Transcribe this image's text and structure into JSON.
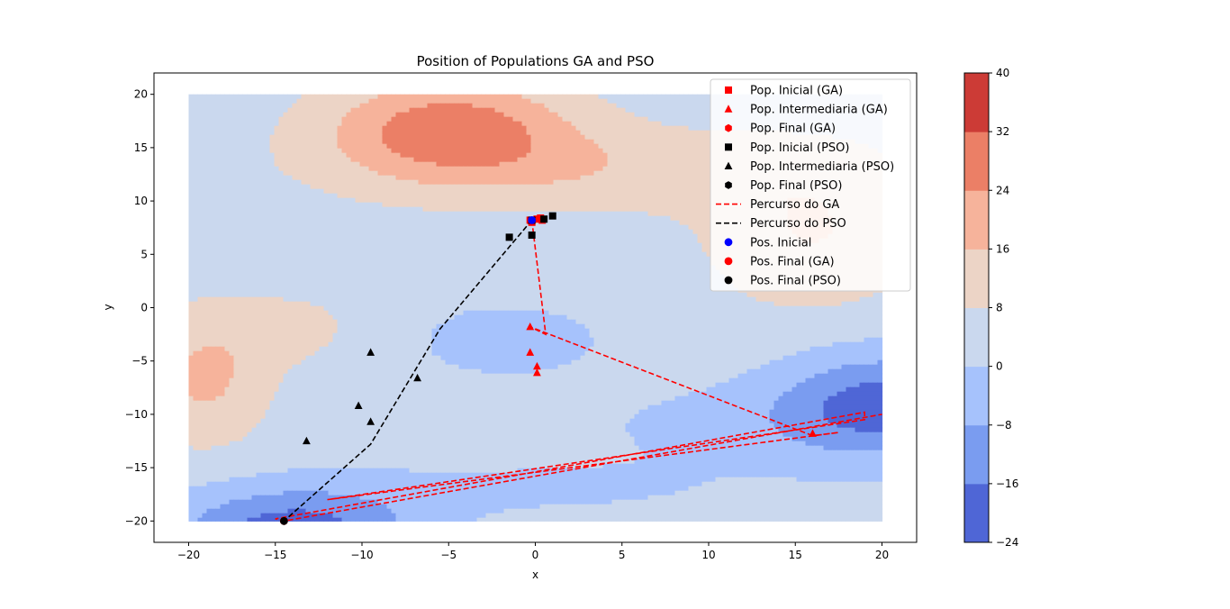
{
  "chart_data": {
    "type": "scatter",
    "title": "Position of Populations GA and PSO",
    "xlabel": "x",
    "ylabel": "y",
    "xlim": [
      -22,
      22
    ],
    "ylim": [
      -22,
      22
    ],
    "x_ticks": [
      -20,
      -15,
      -10,
      -5,
      0,
      5,
      10,
      15,
      20
    ],
    "y_ticks": [
      -20,
      -15,
      -10,
      -5,
      0,
      5,
      10,
      15,
      20
    ],
    "grid": false,
    "legend_position": "top-right",
    "colorbar": {
      "levels": [
        -24,
        -16,
        -8,
        0,
        8,
        16,
        24,
        32,
        40
      ],
      "colors": [
        "#4f66d6",
        "#7a9cf0",
        "#a6c2fc",
        "#cad8ee",
        "#ecd4c6",
        "#f6b39b",
        "#eb7f66",
        "#cc3b36"
      ]
    },
    "contour_background": "filled contour of the objective function over x in [-20, 20], y in [-20, 20]",
    "series": [
      {
        "name": "Pop. Inicial (GA)",
        "marker": "square",
        "color": "#ff0000",
        "kind": "points",
        "points": [
          [
            -0.3,
            8.2
          ],
          [
            0.1,
            8.3
          ],
          [
            0.4,
            8.2
          ],
          [
            -0.2,
            8.0
          ],
          [
            0.3,
            8.4
          ]
        ]
      },
      {
        "name": "Pop. Intermediaria (GA)",
        "marker": "triangle",
        "color": "#ff0000",
        "kind": "points",
        "points": [
          [
            -0.3,
            -1.8
          ],
          [
            -0.3,
            -4.2
          ],
          [
            0.1,
            -5.5
          ],
          [
            0.1,
            -6.1
          ],
          [
            16.0,
            -11.8
          ]
        ]
      },
      {
        "name": "Pop. Final (GA)",
        "marker": "hexagon",
        "color": "#ff0000",
        "kind": "points",
        "points": [
          [
            -14.5,
            -20.0
          ]
        ]
      },
      {
        "name": "Pop. Inicial (PSO)",
        "marker": "square",
        "color": "#000000",
        "kind": "points",
        "points": [
          [
            -1.5,
            6.6
          ],
          [
            -0.2,
            6.8
          ],
          [
            0.5,
            8.3
          ],
          [
            1.0,
            8.6
          ],
          [
            -0.2,
            8.2
          ]
        ]
      },
      {
        "name": "Pop. Intermediaria (PSO)",
        "marker": "triangle",
        "color": "#000000",
        "kind": "points",
        "points": [
          [
            -9.5,
            -4.2
          ],
          [
            -6.8,
            -6.6
          ],
          [
            -10.2,
            -9.2
          ],
          [
            -9.5,
            -10.7
          ],
          [
            -13.2,
            -12.5
          ]
        ]
      },
      {
        "name": "Pop. Final (PSO)",
        "marker": "hexagon",
        "color": "#000000",
        "kind": "points",
        "points": [
          [
            -14.5,
            -20.0
          ]
        ]
      },
      {
        "name": "Percurso do GA",
        "marker": "dashed-line",
        "color": "#ff0000",
        "kind": "path",
        "points": [
          [
            -0.2,
            8.2
          ],
          [
            0.6,
            -2.5
          ],
          [
            -0.3,
            -1.8
          ],
          [
            16.0,
            -12.0
          ],
          [
            17.5,
            -11.7
          ],
          [
            -12.0,
            -18.0
          ],
          [
            19.0,
            -10.5
          ],
          [
            19.0,
            -9.8
          ],
          [
            -15.0,
            -19.8
          ],
          [
            -14.5,
            -20.0
          ],
          [
            20.0,
            -10.0
          ]
        ]
      },
      {
        "name": "Percurso do PSO",
        "marker": "dashed-line",
        "color": "#000000",
        "kind": "path",
        "points": [
          [
            -0.2,
            8.2
          ],
          [
            -5.5,
            -2.0
          ],
          [
            -9.5,
            -12.8
          ],
          [
            -14.5,
            -20.0
          ]
        ]
      },
      {
        "name": "Pos. Inicial",
        "marker": "circle",
        "color": "#0000ff",
        "kind": "points",
        "points": [
          [
            -0.2,
            8.2
          ]
        ]
      },
      {
        "name": "Pos. Final (GA)",
        "marker": "circle",
        "color": "#ff0000",
        "kind": "points",
        "points": [
          [
            -14.5,
            -20.0
          ]
        ]
      },
      {
        "name": "Pos. Final (PSO)",
        "marker": "circle",
        "color": "#000000",
        "kind": "points",
        "points": [
          [
            -14.5,
            -20.0
          ]
        ]
      }
    ]
  }
}
